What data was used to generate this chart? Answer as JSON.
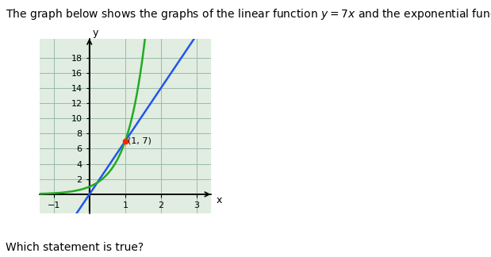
{
  "xlim": [
    -1.4,
    3.4
  ],
  "ylim": [
    -2.5,
    20.5
  ],
  "xticks": [
    -1,
    1,
    2,
    3
  ],
  "yticks": [
    2,
    4,
    6,
    8,
    10,
    12,
    14,
    16,
    18
  ],
  "linear_color": "#2255EE",
  "exponential_color": "#22AA22",
  "point_color": "#FF2200",
  "point_x": 1,
  "point_y": 7,
  "point_label": "(1, 7)",
  "grid_color": "#99BBAA",
  "bg_color": "#FFFFFF",
  "plot_bg": "#E0EDE0",
  "axis_color": "#000000",
  "font_size_ticks": 8,
  "font_size_point": 8,
  "font_size_title": 10,
  "font_size_subtitle": 10
}
